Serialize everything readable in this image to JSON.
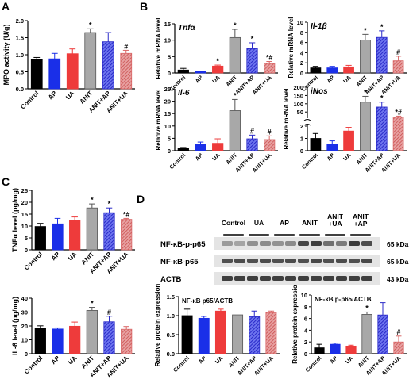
{
  "panel_labels": {
    "A": "A",
    "B": "B",
    "C": "C",
    "D": "D"
  },
  "categories": [
    "Control",
    "AP",
    "UA",
    "ANIT",
    "ANIT+AP",
    "ANIT+UA"
  ],
  "western_blot": {
    "groups": [
      "Control",
      "UA",
      "AP",
      "ANIT",
      "ANIT\n+UA",
      "ANIT\n+AP"
    ],
    "rows": [
      {
        "label": "NF-κB-p-p65",
        "size": "65 kDa"
      },
      {
        "label": "NF-κB-p65",
        "size": "65 kDa"
      },
      {
        "label": "ACTB",
        "size": "43 kDa"
      }
    ]
  },
  "colors": {
    "control": "#000000",
    "ap": "#1a2fe8",
    "ua": "#ee3b3b",
    "anit": "#a8a8a8",
    "anit_ap": "#2a2ac8",
    "anit_ua": "#d96666"
  },
  "chart_data": [
    {
      "id": "A",
      "type": "bar",
      "title": "",
      "ylabel": "MPO activity (U/g)",
      "ylim": [
        0,
        2.0
      ],
      "yticks": [
        0.0,
        0.5,
        1.0,
        1.5,
        2.0
      ],
      "tickfmt": "1",
      "categories": [
        "Control",
        "AP",
        "UA",
        "ANIT",
        "ANIT+AP",
        "ANIT+UA"
      ],
      "values": [
        0.86,
        0.88,
        1.03,
        1.65,
        1.38,
        1.04
      ],
      "errors": [
        0.06,
        0.16,
        0.14,
        0.11,
        0.27,
        0.09
      ],
      "annotations": [
        "",
        "",
        "",
        "*",
        "",
        "#"
      ]
    },
    {
      "id": "Tnfa",
      "type": "bar",
      "title": "Tnfα",
      "ylabel": "Relative mRNA level",
      "ylim": [
        0,
        15
      ],
      "yticks": [
        0,
        5,
        10,
        15
      ],
      "tickfmt": "0",
      "categories": [
        "Control",
        "AP",
        "UA",
        "ANIT",
        "ANIT+AP",
        "ANIT+UA"
      ],
      "values": [
        0.9,
        0.4,
        2.1,
        10.8,
        7.4,
        2.9
      ],
      "errors": [
        0.5,
        0.2,
        0.3,
        2.5,
        1.8,
        0.6
      ],
      "annotations": [
        "",
        "",
        "*",
        "*",
        "*",
        "*#"
      ]
    },
    {
      "id": "Il1b",
      "type": "bar",
      "title": "Il-1β",
      "ylabel": "Relative mRNA level",
      "ylim": [
        0,
        10
      ],
      "yticks": [
        0,
        2,
        4,
        6,
        8,
        10
      ],
      "tickfmt": "0",
      "categories": [
        "Control",
        "AP",
        "UA",
        "ANIT",
        "ANIT+AP",
        "ANIT+UA"
      ],
      "values": [
        1.0,
        1.0,
        1.2,
        6.5,
        7.0,
        2.4
      ],
      "errors": [
        0.3,
        0.3,
        0.3,
        1.1,
        1.3,
        0.9
      ],
      "annotations": [
        "",
        "",
        "",
        "*",
        "*",
        "#"
      ]
    },
    {
      "id": "Il6",
      "type": "bar",
      "title": "Il-6",
      "ylabel": "Relative mRNA level",
      "ylim": [
        0,
        25
      ],
      "yticks": [
        0,
        5,
        10,
        15,
        20,
        25
      ],
      "tickfmt": "0",
      "categories": [
        "Control",
        "AP",
        "UA",
        "ANIT",
        "ANIT+AP",
        "ANIT+UA"
      ],
      "values": [
        1.0,
        2.5,
        3.0,
        16.2,
        4.8,
        4.5
      ],
      "errors": [
        0.3,
        1.0,
        1.8,
        4.5,
        1.5,
        1.5
      ],
      "annotations": [
        "",
        "",
        "",
        "*",
        "#",
        "#"
      ]
    },
    {
      "id": "iNos",
      "type": "bar",
      "title": "iNos",
      "ylabel": "Relative mRNA level",
      "broken_axis": true,
      "lower": {
        "ylim": [
          0,
          2
        ],
        "yticks": [
          0,
          1,
          2
        ]
      },
      "upper": {
        "ylim": [
          3,
          200
        ],
        "yticks": [
          50,
          100,
          150,
          200
        ]
      },
      "tickfmt": "0",
      "categories": [
        "Control",
        "AP",
        "UA",
        "ANIT",
        "ANIT+AP",
        "ANIT+UA"
      ],
      "values": [
        1.0,
        0.5,
        1.6,
        110,
        80,
        20
      ],
      "errors": [
        0.4,
        0.3,
        0.3,
        35,
        30,
        5
      ],
      "annotations": [
        "",
        "",
        "",
        "*",
        "*",
        "*#"
      ]
    },
    {
      "id": "TNF",
      "type": "bar",
      "title": "",
      "ylabel": "TNFα level (pg/mg)",
      "ylim": [
        0,
        25
      ],
      "yticks": [
        0,
        5,
        10,
        15,
        20,
        25
      ],
      "tickfmt": "0",
      "categories": [
        "Control",
        "AP",
        "UA",
        "ANIT",
        "ANIT+AP",
        "ANIT+UA"
      ],
      "values": [
        9.8,
        10.9,
        12.2,
        17.6,
        15.6,
        12.8
      ],
      "errors": [
        1.3,
        2.3,
        1.6,
        1.7,
        2.0,
        0.4
      ],
      "annotations": [
        "",
        "",
        "",
        "*",
        "*",
        "*#"
      ]
    },
    {
      "id": "IL6",
      "type": "bar",
      "title": "",
      "ylabel": "IL-6 level (pg/mg)",
      "ylim": [
        0,
        40
      ],
      "yticks": [
        0,
        10,
        20,
        30,
        40
      ],
      "tickfmt": "0",
      "categories": [
        "Control",
        "AP",
        "UA",
        "ANIT",
        "ANIT+AP",
        "ANIT+UA"
      ],
      "values": [
        18.5,
        17.8,
        19.8,
        31.2,
        23.0,
        17.6
      ],
      "errors": [
        1.6,
        0.8,
        3.0,
        2.2,
        4.0,
        2.0
      ],
      "annotations": [
        "",
        "",
        "",
        "*",
        "#",
        ""
      ]
    },
    {
      "id": "p65",
      "type": "bar",
      "title": "NF-κB p65/ACTB",
      "ylabel": "Relative protein expression",
      "ylim": [
        0,
        1.5
      ],
      "yticks": [
        0.0,
        0.5,
        1.0,
        1.5
      ],
      "tickfmt": "1",
      "categories": [
        "Control",
        "AP",
        "UA",
        "ANIT",
        "ANIT+AP",
        "ANIT+UA"
      ],
      "values": [
        1.0,
        0.93,
        1.12,
        1.02,
        0.97,
        1.08
      ],
      "errors": [
        0.17,
        0.05,
        0.05,
        0.0,
        0.15,
        0.04
      ],
      "annotations": [
        "",
        "",
        "",
        "",
        "",
        ""
      ]
    },
    {
      "id": "pp65",
      "type": "bar",
      "title": "NF-κB p-p65/ACTB",
      "ylabel": "Relative protein expressio",
      "ylim": [
        0,
        10
      ],
      "yticks": [
        0,
        2,
        4,
        6,
        8,
        10
      ],
      "tickfmt": "0",
      "categories": [
        "Control",
        "AP",
        "UA",
        "ANIT",
        "ANIT+AP",
        "ANIT+UA"
      ],
      "values": [
        1.0,
        1.6,
        1.3,
        6.7,
        6.6,
        2.0
      ],
      "errors": [
        0.6,
        0.2,
        0.15,
        0.4,
        2.1,
        1.0
      ],
      "annotations": [
        "",
        "",
        "",
        "*",
        "",
        "#"
      ]
    }
  ]
}
